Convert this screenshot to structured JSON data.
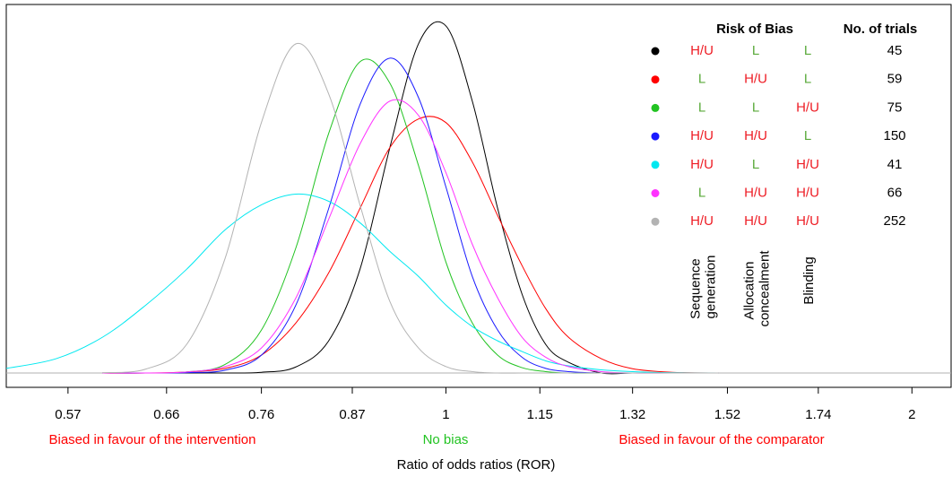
{
  "chart_data": {
    "type": "line",
    "xlabel": "Ratio of odds ratios (ROR)",
    "xscale": "log",
    "xlim": [
      0.52,
      2.12
    ],
    "ylim": [
      -0.04,
      1.03
    ],
    "xticks": [
      0.57,
      0.66,
      0.76,
      0.87,
      1,
      1.15,
      1.32,
      1.52,
      1.74,
      2
    ],
    "smooth": true,
    "x": [
      0.52,
      0.56,
      0.6,
      0.64,
      0.68,
      0.72,
      0.76,
      0.8,
      0.84,
      0.88,
      0.92,
      0.96,
      1.0,
      1.04,
      1.08,
      1.12,
      1.16,
      1.2,
      1.26,
      1.32,
      1.4,
      1.5
    ],
    "series": [
      {
        "color": "#000000",
        "values": [
          null,
          null,
          0,
          0,
          0,
          0,
          0.002,
          0.017,
          0.09,
          0.29,
          0.63,
          0.92,
          0.97,
          0.76,
          0.46,
          0.22,
          0.08,
          0.03,
          0,
          0,
          0,
          0
        ]
      },
      {
        "color": "#ff0000",
        "values": [
          null,
          null,
          0,
          0,
          0.003,
          0.013,
          0.05,
          0.14,
          0.28,
          0.46,
          0.63,
          0.71,
          0.7,
          0.59,
          0.44,
          0.3,
          0.18,
          0.1,
          0.04,
          0.012,
          0.002,
          0
        ]
      },
      {
        "color": "#22c322",
        "values": [
          null,
          null,
          0,
          0,
          0.003,
          0.024,
          0.12,
          0.35,
          0.67,
          0.87,
          0.81,
          0.58,
          0.31,
          0.14,
          0.05,
          0.015,
          0.004,
          0,
          0,
          0,
          0,
          0
        ]
      },
      {
        "color": "#1a1aff",
        "values": [
          null,
          null,
          0,
          0,
          0.001,
          0.008,
          0.05,
          0.19,
          0.46,
          0.75,
          0.88,
          0.77,
          0.52,
          0.27,
          0.12,
          0.044,
          0.013,
          0.004,
          0,
          0,
          0,
          0
        ]
      },
      {
        "color": "#00e8f0",
        "values": [
          0.013,
          0.04,
          0.1,
          0.19,
          0.29,
          0.4,
          0.47,
          0.5,
          0.48,
          0.42,
          0.34,
          0.27,
          0.19,
          0.13,
          0.09,
          0.06,
          0.034,
          0.02,
          0.009,
          0.004,
          0.001,
          0
        ]
      },
      {
        "color": "#ff33ff",
        "values": [
          null,
          null,
          0,
          0,
          0.003,
          0.018,
          0.07,
          0.21,
          0.43,
          0.64,
          0.76,
          0.72,
          0.56,
          0.36,
          0.21,
          0.1,
          0.044,
          0.018,
          0.004,
          0,
          0,
          0
        ]
      },
      {
        "color": "#b3b3b3",
        "values": [
          null,
          null,
          0.001,
          0.011,
          0.08,
          0.32,
          0.7,
          0.92,
          0.78,
          0.47,
          0.2,
          0.07,
          0.018,
          0.004,
          0,
          0,
          0,
          0,
          0,
          0,
          0,
          0
        ]
      }
    ],
    "annotations": [
      {
        "text": "Biased in favour of the intervention",
        "color": "#ff0000"
      },
      {
        "text": "No bias",
        "color": "#22c322"
      },
      {
        "text": "Biased in favour of the comparator",
        "color": "#ff0000"
      }
    ],
    "risk_table": {
      "title": "Risk of Bias",
      "count_header": "No. of trials",
      "columns": [
        "Sequence generation",
        "Allocation concealment",
        "Blinding"
      ],
      "rating_colors": {
        "H/U": "#ee1c24",
        "L": "#5aaa3a"
      },
      "rows": [
        [
          "H/U",
          "L",
          "L"
        ],
        [
          "L",
          "H/U",
          "L"
        ],
        [
          "L",
          "L",
          "H/U"
        ],
        [
          "H/U",
          "H/U",
          "L"
        ],
        [
          "H/U",
          "L",
          "H/U"
        ],
        [
          "L",
          "H/U",
          "H/U"
        ],
        [
          "H/U",
          "H/U",
          "H/U"
        ]
      ],
      "counts": [
        45,
        59,
        75,
        150,
        41,
        66,
        252
      ]
    }
  }
}
